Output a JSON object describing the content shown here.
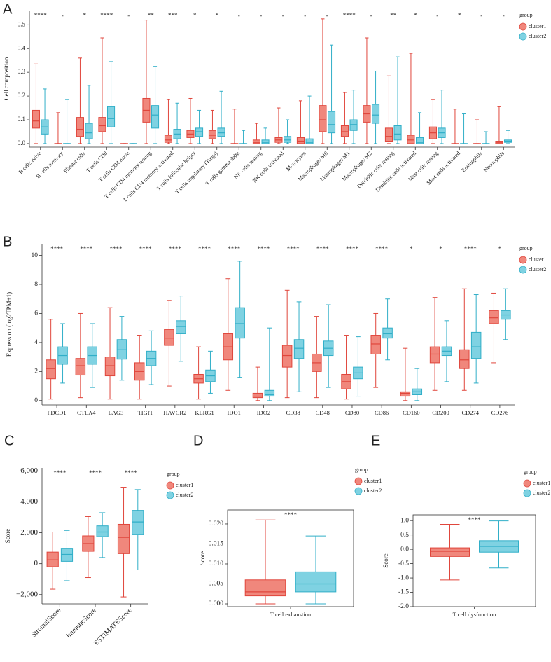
{
  "chart_data": [
    {
      "type": "box",
      "panel": "A",
      "ylabel": "Cell composition",
      "legend_title": "group",
      "categories": [
        "B cells naive",
        "B cells memory",
        "Plasma cells",
        "T cells CD8",
        "T cells CD4 naive",
        "T cells CD4 memory resting",
        "T cells CD4 memory activated",
        "T cells follicular helper",
        "T cells regulatory (Tregs)",
        "T cells gamma delta",
        "NK cells resting",
        "NK cells activated",
        "Monocytes",
        "Macrophages M0",
        "Macrophages M1",
        "Macrophages M2",
        "Dendritic cells resting",
        "Dendritic cells activated",
        "Mast cells resting",
        "Mast cells activated",
        "Eosinophils",
        "Neutrophils"
      ],
      "annotations": [
        "****",
        "-",
        "*",
        "****",
        "-",
        "**",
        "***",
        "*",
        "*",
        "-",
        "-",
        "-",
        "-",
        "-",
        "****",
        "-",
        "**",
        "*",
        "-",
        "*",
        "-",
        "-"
      ],
      "series": [
        {
          "name": "cluster1",
          "color": "#f0877c",
          "edge_color": "#e0463c",
          "values": [
            {
              "min": 0,
              "q1": 0.065,
              "median": 0.095,
              "q3": 0.14,
              "max": 0.335
            },
            {
              "min": 0,
              "q1": 0,
              "median": 0,
              "q3": 0,
              "max": 0.13
            },
            {
              "min": 0,
              "q1": 0.03,
              "median": 0.06,
              "q3": 0.11,
              "max": 0.36
            },
            {
              "min": 0,
              "q1": 0.05,
              "median": 0.075,
              "q3": 0.11,
              "max": 0.445
            },
            {
              "min": 0,
              "q1": 0,
              "median": 0,
              "q3": 0,
              "max": 0
            },
            {
              "min": 0,
              "q1": 0.09,
              "median": 0.14,
              "q3": 0.19,
              "max": 0.52
            },
            {
              "min": 0,
              "q1": 0.005,
              "median": 0.015,
              "q3": 0.035,
              "max": 0.185
            },
            {
              "min": 0,
              "q1": 0.025,
              "median": 0.04,
              "q3": 0.055,
              "max": 0.19
            },
            {
              "min": 0,
              "q1": 0.02,
              "median": 0.035,
              "q3": 0.055,
              "max": 0.14
            },
            {
              "min": 0,
              "q1": 0,
              "median": 0,
              "q3": 0,
              "max": 0.145
            },
            {
              "min": 0,
              "q1": 0,
              "median": 0.005,
              "q3": 0.015,
              "max": 0.085
            },
            {
              "min": 0,
              "q1": 0.005,
              "median": 0.015,
              "q3": 0.025,
              "max": 0.15
            },
            {
              "min": 0,
              "q1": 0,
              "median": 0.01,
              "q3": 0.025,
              "max": 0.18
            },
            {
              "min": 0,
              "q1": 0.05,
              "median": 0.1,
              "q3": 0.16,
              "max": 0.525
            },
            {
              "min": 0,
              "q1": 0.03,
              "median": 0.05,
              "q3": 0.075,
              "max": 0.215
            },
            {
              "min": 0,
              "q1": 0.09,
              "median": 0.125,
              "q3": 0.16,
              "max": 0.445
            },
            {
              "min": 0,
              "q1": 0.01,
              "median": 0.03,
              "q3": 0.065,
              "max": 0.285
            },
            {
              "min": 0,
              "q1": 0,
              "median": 0.015,
              "q3": 0.035,
              "max": 0.38
            },
            {
              "min": 0,
              "q1": 0.02,
              "median": 0.045,
              "q3": 0.07,
              "max": 0.185
            },
            {
              "min": 0,
              "q1": 0,
              "median": 0,
              "q3": 0,
              "max": 0.145
            },
            {
              "min": 0,
              "q1": 0,
              "median": 0,
              "q3": 0,
              "max": 0.1
            },
            {
              "min": 0,
              "q1": 0,
              "median": 0.005,
              "q3": 0.01,
              "max": 0.155
            }
          ]
        },
        {
          "name": "cluster2",
          "color": "#7fd2e2",
          "edge_color": "#31afc8",
          "values": [
            {
              "min": 0,
              "q1": 0.04,
              "median": 0.07,
              "q3": 0.1,
              "max": 0.23
            },
            {
              "min": 0,
              "q1": 0,
              "median": 0,
              "q3": 0,
              "max": 0.185
            },
            {
              "min": 0,
              "q1": 0.02,
              "median": 0.045,
              "q3": 0.085,
              "max": 0.245
            },
            {
              "min": 0,
              "q1": 0.07,
              "median": 0.105,
              "q3": 0.155,
              "max": 0.345
            },
            {
              "min": 0,
              "q1": 0,
              "median": 0,
              "q3": 0,
              "max": 0
            },
            {
              "min": 0,
              "q1": 0.065,
              "median": 0.12,
              "q3": 0.16,
              "max": 0.325
            },
            {
              "min": 0,
              "q1": 0.02,
              "median": 0.04,
              "q3": 0.06,
              "max": 0.17
            },
            {
              "min": 0,
              "q1": 0.03,
              "median": 0.05,
              "q3": 0.065,
              "max": 0.14
            },
            {
              "min": 0,
              "q1": 0.03,
              "median": 0.045,
              "q3": 0.065,
              "max": 0.22
            },
            {
              "min": 0,
              "q1": 0,
              "median": 0,
              "q3": 0,
              "max": 0.055
            },
            {
              "min": 0,
              "q1": 0,
              "median": 0.005,
              "q3": 0.015,
              "max": 0.065
            },
            {
              "min": 0,
              "q1": 0.005,
              "median": 0.015,
              "q3": 0.03,
              "max": 0.1
            },
            {
              "min": 0,
              "q1": 0,
              "median": 0.005,
              "q3": 0.02,
              "max": 0.2
            },
            {
              "min": 0,
              "q1": 0.045,
              "median": 0.08,
              "q3": 0.135,
              "max": 0.415
            },
            {
              "min": 0,
              "q1": 0.055,
              "median": 0.08,
              "q3": 0.1,
              "max": 0.225
            },
            {
              "min": 0,
              "q1": 0.085,
              "median": 0.12,
              "q3": 0.165,
              "max": 0.305
            },
            {
              "min": 0,
              "q1": 0.015,
              "median": 0.04,
              "q3": 0.075,
              "max": 0.365
            },
            {
              "min": 0,
              "q1": 0,
              "median": 0.005,
              "q3": 0.025,
              "max": 0.13
            },
            {
              "min": 0,
              "q1": 0.025,
              "median": 0.045,
              "q3": 0.065,
              "max": 0.225
            },
            {
              "min": 0,
              "q1": 0,
              "median": 0,
              "q3": 0,
              "max": 0.125
            },
            {
              "min": 0,
              "q1": 0,
              "median": 0,
              "q3": 0,
              "max": 0.05
            },
            {
              "min": 0,
              "q1": 0.005,
              "median": 0.01,
              "q3": 0.015,
              "max": 0.055
            }
          ]
        }
      ],
      "ylim": [
        -0.015,
        0.56
      ],
      "yticks": [
        {
          "value": 0,
          "label": "0.0"
        },
        0.1,
        0.2,
        0.3,
        0.4,
        0.5
      ],
      "frame": false
    },
    {
      "type": "box",
      "panel": "B",
      "ylabel": "Expression (log2TPM+1)",
      "legend_title": "group",
      "categories": [
        "PDCD1",
        "CTLA4",
        "LAG3",
        "TIGIT",
        "HAVCR2",
        "KLRG1",
        "IDO1",
        "IDO2",
        "CD38",
        "CD48",
        "CD80",
        "CD86",
        "CD160",
        "CD200",
        "CD274",
        "CD276"
      ],
      "annotations": [
        "****",
        "****",
        "****",
        "****",
        "****",
        "****",
        "****",
        "****",
        "****",
        "****",
        "****",
        "****",
        "*",
        "*",
        "****",
        "*"
      ],
      "series": [
        {
          "name": "cluster1",
          "color": "#f0877c",
          "edge_color": "#e0463c",
          "values": [
            {
              "min": 0.1,
              "q1": 1.5,
              "median": 2.2,
              "q3": 2.8,
              "max": 5.6
            },
            {
              "min": 0.2,
              "q1": 1.75,
              "median": 2.4,
              "q3": 2.9,
              "max": 6.0
            },
            {
              "min": 0.1,
              "q1": 1.7,
              "median": 2.4,
              "q3": 3.0,
              "max": 6.4
            },
            {
              "min": 0.1,
              "q1": 1.4,
              "median": 2.0,
              "q3": 2.6,
              "max": 4.5
            },
            {
              "min": 1.0,
              "q1": 3.8,
              "median": 4.3,
              "q3": 4.9,
              "max": 6.9
            },
            {
              "min": 0.1,
              "q1": 1.2,
              "median": 1.5,
              "q3": 1.8,
              "max": 3.7
            },
            {
              "min": 0.7,
              "q1": 2.8,
              "median": 3.7,
              "q3": 4.6,
              "max": 8.4
            },
            {
              "min": 0,
              "q1": 0.2,
              "median": 0.3,
              "q3": 0.5,
              "max": 2.3
            },
            {
              "min": 0.2,
              "q1": 2.3,
              "median": 3.1,
              "q3": 3.8,
              "max": 7.6
            },
            {
              "min": 0.2,
              "q1": 2.0,
              "median": 2.6,
              "q3": 3.2,
              "max": 5.8
            },
            {
              "min": 0.1,
              "q1": 0.8,
              "median": 1.3,
              "q3": 1.8,
              "max": 4.5
            },
            {
              "min": 0.9,
              "q1": 3.2,
              "median": 3.9,
              "q3": 4.5,
              "max": 6.0
            },
            {
              "min": 0,
              "q1": 0.3,
              "median": 0.5,
              "q3": 0.6,
              "max": 3.6
            },
            {
              "min": 0.7,
              "q1": 2.6,
              "median": 3.2,
              "q3": 3.7,
              "max": 7.1
            },
            {
              "min": 0.7,
              "q1": 2.2,
              "median": 2.8,
              "q3": 3.5,
              "max": 7.7
            },
            {
              "min": 2.6,
              "q1": 5.3,
              "median": 5.7,
              "q3": 6.2,
              "max": 7.4
            }
          ]
        },
        {
          "name": "cluster2",
          "color": "#7fd2e2",
          "edge_color": "#31afc8",
          "values": [
            {
              "min": 1.2,
              "q1": 2.5,
              "median": 3.1,
              "q3": 3.7,
              "max": 5.3
            },
            {
              "min": 0.9,
              "q1": 2.5,
              "median": 3.1,
              "q3": 3.7,
              "max": 5.3
            },
            {
              "min": 1.4,
              "q1": 2.85,
              "median": 3.5,
              "q3": 4.2,
              "max": 5.8
            },
            {
              "min": 1.1,
              "q1": 2.4,
              "median": 2.9,
              "q3": 3.4,
              "max": 4.8
            },
            {
              "min": 2.7,
              "q1": 4.6,
              "median": 5.1,
              "q3": 5.5,
              "max": 7.2
            },
            {
              "min": 0.5,
              "q1": 1.3,
              "median": 1.7,
              "q3": 2.1,
              "max": 3.4
            },
            {
              "min": 1.6,
              "q1": 4.3,
              "median": 5.3,
              "q3": 6.4,
              "max": 9.6
            },
            {
              "min": 0,
              "q1": 0.3,
              "median": 0.4,
              "q3": 0.7,
              "max": 5.0
            },
            {
              "min": 0.6,
              "q1": 2.9,
              "median": 3.6,
              "q3": 4.2,
              "max": 6.8
            },
            {
              "min": 0.9,
              "q1": 3.1,
              "median": 3.6,
              "q3": 4.1,
              "max": 6.6
            },
            {
              "min": 0.3,
              "q1": 1.5,
              "median": 1.9,
              "q3": 2.3,
              "max": 4.4
            },
            {
              "min": 2.8,
              "q1": 4.3,
              "median": 4.6,
              "q3": 5.0,
              "max": 7.0
            },
            {
              "min": 0,
              "q1": 0.4,
              "median": 0.6,
              "q3": 0.8,
              "max": 2.2
            },
            {
              "min": 1.3,
              "q1": 3.1,
              "median": 3.4,
              "q3": 3.7,
              "max": 5.5
            },
            {
              "min": 1.2,
              "q1": 2.9,
              "median": 3.7,
              "q3": 4.7,
              "max": 7.3
            },
            {
              "min": 4.2,
              "q1": 5.6,
              "median": 5.9,
              "q3": 6.2,
              "max": 7.7
            }
          ]
        }
      ],
      "ylim": [
        -0.3,
        10.8
      ],
      "yticks": [
        0,
        2,
        4,
        6,
        8,
        10
      ],
      "frame": false
    },
    {
      "type": "box",
      "panel": "C",
      "ylabel": "Score",
      "legend_title": "group",
      "categories": [
        "StromalScore",
        "ImmuneScore",
        "ESTIMATEScore"
      ],
      "annotations": [
        "****",
        "****",
        "****"
      ],
      "series": [
        {
          "name": "cluster1",
          "color": "#f0877c",
          "edge_color": "#e0463c",
          "values": [
            {
              "min": -1650,
              "q1": -200,
              "median": 250,
              "q3": 750,
              "max": 2050
            },
            {
              "min": -900,
              "q1": 800,
              "median": 1300,
              "q3": 1800,
              "max": 3050
            },
            {
              "min": -2150,
              "q1": 650,
              "median": 1700,
              "q3": 2550,
              "max": 4950
            }
          ]
        },
        {
          "name": "cluster2",
          "color": "#7fd2e2",
          "edge_color": "#31afc8",
          "values": [
            {
              "min": -1100,
              "q1": 150,
              "median": 600,
              "q3": 1000,
              "max": 2150
            },
            {
              "min": 400,
              "q1": 1750,
              "median": 2050,
              "q3": 2450,
              "max": 3300
            },
            {
              "min": -400,
              "q1": 1900,
              "median": 2700,
              "q3": 3450,
              "max": 4800
            }
          ]
        }
      ],
      "ylim": [
        -2600,
        6200
      ],
      "yticks": [
        {
          "value": -2000,
          "label": "−2,000"
        },
        0,
        {
          "value": 2000,
          "label": "2,000"
        },
        {
          "value": 4000,
          "label": "4,000"
        },
        {
          "value": 6000,
          "label": "6,000"
        }
      ],
      "frame": false
    },
    {
      "type": "box",
      "panel": "D",
      "ylabel": "Score",
      "legend_title": "group",
      "categories": [
        "T cell exhaustion"
      ],
      "annotations": [
        "****"
      ],
      "series": [
        {
          "name": "cluster1",
          "color": "#f0877c",
          "edge_color": "#e0463c",
          "values": [
            {
              "min": 0,
              "q1": 0.002,
              "median": 0.003,
              "q3": 0.006,
              "max": 0.021
            }
          ]
        },
        {
          "name": "cluster2",
          "color": "#7fd2e2",
          "edge_color": "#31afc8",
          "values": [
            {
              "min": 0,
              "q1": 0.003,
              "median": 0.005,
              "q3": 0.008,
              "max": 0.017
            }
          ]
        }
      ],
      "ylim": [
        -0.0007,
        0.0235
      ],
      "yticks": [
        {
          "value": 0,
          "label": "0.000"
        },
        0.005,
        {
          "value": 0.01,
          "label": "0.010"
        },
        0.015,
        {
          "value": 0.02,
          "label": "0.020"
        }
      ],
      "frame": true
    },
    {
      "type": "box",
      "panel": "E",
      "ylabel": "Score",
      "legend_title": "group",
      "categories": [
        "T cell dysfunction"
      ],
      "annotations": [
        "****"
      ],
      "series": [
        {
          "name": "cluster1",
          "color": "#f0877c",
          "edge_color": "#e0463c",
          "values": [
            {
              "min": -1.07,
              "q1": -0.25,
              "median": -0.07,
              "q3": 0.05,
              "max": 0.87
            }
          ]
        },
        {
          "name": "cluster2",
          "color": "#7fd2e2",
          "edge_color": "#31afc8",
          "values": [
            {
              "min": -0.65,
              "q1": -0.1,
              "median": 0.1,
              "q3": 0.3,
              "max": 0.99
            }
          ]
        }
      ],
      "ylim": [
        -2.0,
        1.2
      ],
      "yticks": [
        {
          "value": -2,
          "label": "-2.0"
        },
        -1.5,
        {
          "value": -1,
          "label": "-1.0"
        },
        -0.5,
        {
          "value": 0,
          "label": "0.0"
        },
        0.5,
        {
          "value": 1,
          "label": "1.0"
        }
      ],
      "frame": true
    }
  ]
}
